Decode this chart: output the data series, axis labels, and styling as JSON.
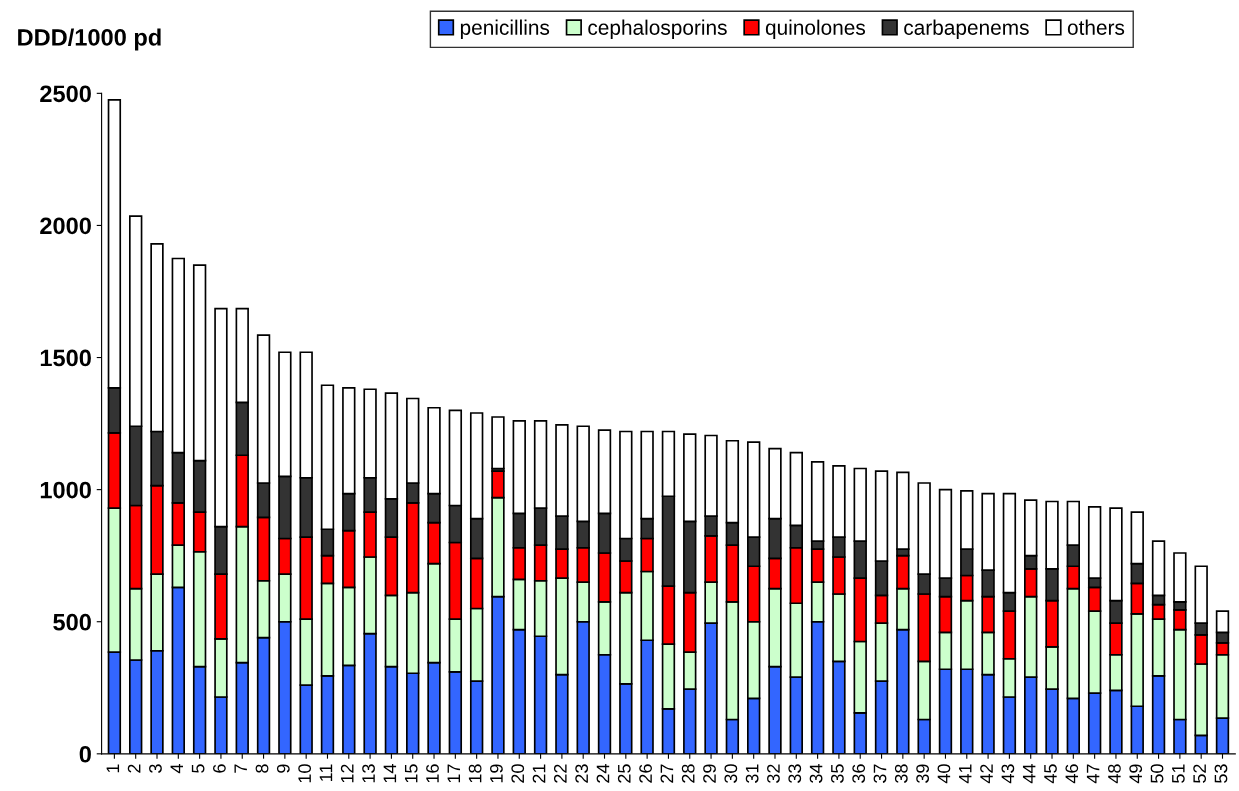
{
  "chart_data": {
    "type": "bar",
    "stacked": true,
    "ylabel": "DDD/1000 pd",
    "categories": [
      "1",
      "2",
      "3",
      "4",
      "5",
      "6",
      "7",
      "8",
      "9",
      "10",
      "11",
      "12",
      "13",
      "14",
      "15",
      "16",
      "17",
      "18",
      "19",
      "20",
      "21",
      "22",
      "23",
      "24",
      "25",
      "26",
      "27",
      "28",
      "29",
      "30",
      "31",
      "32",
      "33",
      "34",
      "35",
      "36",
      "37",
      "38",
      "39",
      "40",
      "41",
      "42",
      "43",
      "44",
      "45",
      "46",
      "47",
      "48",
      "49",
      "50",
      "51",
      "52",
      "53"
    ],
    "series": [
      {
        "name": "penicillins",
        "color": "#3366ff",
        "values": [
          385,
          355,
          390,
          630,
          330,
          215,
          345,
          440,
          500,
          260,
          295,
          335,
          455,
          330,
          305,
          345,
          310,
          275,
          595,
          470,
          445,
          300,
          500,
          375,
          265,
          430,
          170,
          245,
          495,
          130,
          210,
          330,
          290,
          500,
          350,
          155,
          275,
          470,
          130,
          320,
          320,
          300,
          215,
          290,
          245,
          210,
          230,
          240,
          180,
          295,
          130,
          70,
          135
        ]
      },
      {
        "name": "cephalosporins",
        "color": "#ccffcc",
        "values": [
          545,
          270,
          290,
          160,
          435,
          220,
          515,
          215,
          180,
          250,
          350,
          295,
          290,
          270,
          305,
          375,
          200,
          275,
          375,
          190,
          210,
          365,
          150,
          200,
          345,
          260,
          245,
          140,
          155,
          445,
          290,
          295,
          280,
          150,
          255,
          270,
          220,
          155,
          220,
          140,
          260,
          160,
          145,
          305,
          160,
          415,
          310,
          135,
          350,
          215,
          340,
          270,
          240
        ]
      },
      {
        "name": "quinolones",
        "color": "#ff0000",
        "values": [
          285,
          315,
          335,
          160,
          150,
          245,
          270,
          240,
          135,
          310,
          105,
          215,
          170,
          220,
          340,
          155,
          290,
          190,
          100,
          120,
          135,
          110,
          130,
          185,
          120,
          125,
          220,
          225,
          175,
          215,
          210,
          115,
          210,
          125,
          140,
          240,
          105,
          125,
          255,
          135,
          95,
          135,
          180,
          105,
          175,
          85,
          90,
          120,
          115,
          55,
          75,
          110,
          45
        ]
      },
      {
        "name": "carbapenems",
        "color": "#333333",
        "values": [
          170,
          300,
          205,
          190,
          195,
          180,
          200,
          130,
          235,
          225,
          100,
          140,
          130,
          145,
          75,
          110,
          140,
          150,
          10,
          130,
          140,
          125,
          100,
          150,
          85,
          75,
          340,
          270,
          75,
          85,
          110,
          150,
          85,
          30,
          75,
          140,
          130,
          25,
          75,
          70,
          100,
          100,
          70,
          50,
          120,
          80,
          35,
          85,
          75,
          35,
          30,
          45,
          40
        ]
      },
      {
        "name": "others",
        "color": "#ffffff",
        "values": [
          1090,
          795,
          710,
          735,
          740,
          825,
          355,
          560,
          470,
          475,
          545,
          400,
          335,
          400,
          320,
          325,
          360,
          400,
          195,
          350,
          330,
          345,
          360,
          315,
          405,
          330,
          245,
          330,
          305,
          310,
          360,
          265,
          275,
          300,
          270,
          275,
          340,
          290,
          345,
          335,
          220,
          290,
          375,
          210,
          255,
          165,
          270,
          350,
          195,
          205,
          185,
          215,
          80
        ]
      }
    ],
    "ylim": [
      0,
      2500
    ],
    "yticks": [
      0,
      500,
      1000,
      1500,
      2000,
      2500
    ],
    "legend": "top",
    "grid": false
  }
}
